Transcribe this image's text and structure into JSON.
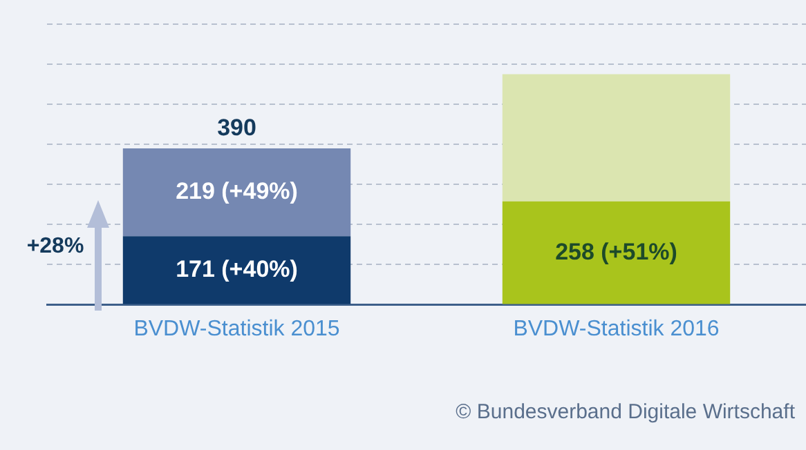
{
  "chart_data": {
    "type": "bar",
    "stacked": true,
    "categories": [
      "BVDW-Statistik 2015",
      "BVDW-Statistik 2016"
    ],
    "series": [
      {
        "colors": [
          "#0f3a6b",
          "#a9c41c"
        ],
        "values": [
          171,
          258
        ],
        "value_labels": [
          "171 (+40%)",
          "258 (+51%)"
        ]
      },
      {
        "colors": [
          "#7588b2",
          "#dbe5b0"
        ],
        "values": [
          219,
          317
        ],
        "value_labels": [
          "219 (+49%)",
          null
        ]
      }
    ],
    "totals": [
      "390",
      null
    ],
    "ylim": [
      0,
      760
    ],
    "yticks": [
      {
        "value": 0,
        "label": null
      },
      {
        "value": 100,
        "label": null
      },
      {
        "value": 200,
        "label": null
      },
      {
        "value": 300,
        "label": null
      },
      {
        "value": 400,
        "label": null
      },
      {
        "value": 500,
        "label": null
      },
      {
        "value": 600,
        "label": null
      },
      {
        "value": 700,
        "label": null
      }
    ],
    "tick_labels": "x",
    "grid": "y",
    "legend": false,
    "annotations": [
      "+28%",
      "© Bundesverband Digitale Wirtschaft"
    ]
  }
}
